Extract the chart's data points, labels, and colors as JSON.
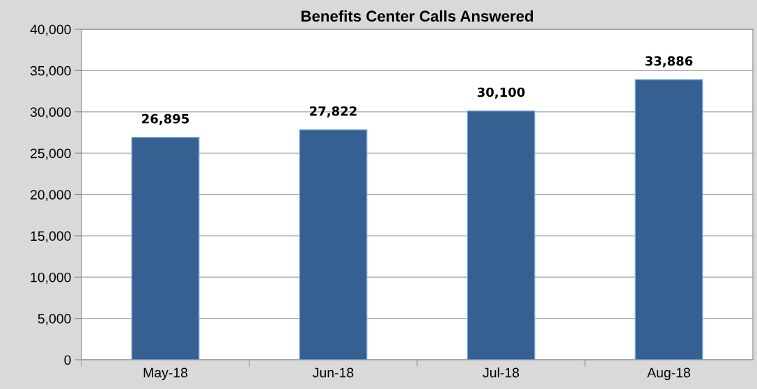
{
  "chart_data": {
    "type": "bar",
    "title": "Benefits Center Calls Answered",
    "categories": [
      "May-18",
      "Jun-18",
      "Jul-18",
      "Aug-18"
    ],
    "values": [
      26895,
      27822,
      30100,
      33886
    ],
    "value_labels": [
      "26,895",
      "27,822",
      "30,100",
      "33,886"
    ],
    "color": "#376092",
    "ylim": [
      0,
      40000
    ],
    "yticks": [
      {
        "value": 0,
        "label": "0"
      },
      {
        "value": 5000,
        "label": "5,000"
      },
      {
        "value": 10000,
        "label": "10,000"
      },
      {
        "value": 15000,
        "label": "15,000"
      },
      {
        "value": 20000,
        "label": "20,000"
      },
      {
        "value": 25000,
        "label": "25,000"
      },
      {
        "value": 30000,
        "label": "30,000"
      },
      {
        "value": 35000,
        "label": "35,000"
      },
      {
        "value": 40000,
        "label": "40,000"
      }
    ],
    "grid": "y",
    "legend": false
  }
}
